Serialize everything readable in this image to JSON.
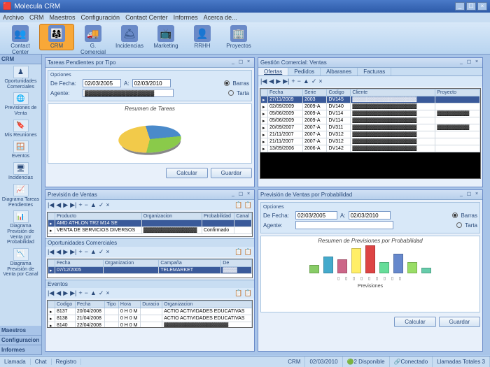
{
  "window": {
    "title": "Molecula CRM"
  },
  "menu": [
    "Archivo",
    "CRM",
    "Maestros",
    "Configuración",
    "Contact Center",
    "Informes",
    "Acerca de..."
  ],
  "ribbon": [
    {
      "label": "Contact Center",
      "icon": "👥"
    },
    {
      "label": "CRM",
      "icon": "👨‍👩‍👧",
      "active": true
    },
    {
      "label": "G. Comercial",
      "icon": "🚚"
    },
    {
      "label": "Incidencias",
      "icon": "🛎"
    },
    {
      "label": "Marketing",
      "icon": "📺"
    },
    {
      "label": "RRHH",
      "icon": "👤"
    },
    {
      "label": "Proyectos",
      "icon": "🏢"
    }
  ],
  "sidebar": {
    "group": "CRM",
    "items": [
      {
        "label": "Oportunidades Comerciales",
        "icon": "♟"
      },
      {
        "label": "Previsiones de Venta",
        "icon": "🌐"
      },
      {
        "label": "Mis Reuniones",
        "icon": "🔖"
      },
      {
        "label": "Eventos",
        "icon": "🪟"
      },
      {
        "label": "Incidencias",
        "icon": "🖥"
      },
      {
        "label": "Diagrama Tareas Pendientes",
        "icon": "📈"
      },
      {
        "label": "Diagrama Previsión de Venta por Probabilidad",
        "icon": "📊"
      },
      {
        "label": "Diagrama Previsión de Venta por Canal",
        "icon": "📉"
      }
    ],
    "bottom": [
      "Maestros",
      "Configuracion",
      "Informes"
    ]
  },
  "pane_tasks": {
    "title": "Tareas Pendientes por Tipo",
    "opts": {
      "label1": "Opciones",
      "from_lbl": "De Fecha:",
      "from": "02/03/2005",
      "to_lbl": "A:",
      "to": "02/03/2010",
      "agent_lbl": "Agente:",
      "agent": "▓▓▓▓▓▓▓▓▓▓▓▓▓▓▓▓▓",
      "r1": "Barras",
      "r2": "Tarta"
    },
    "chart": {
      "title": "Resumen de Tareas",
      "type": "pie",
      "colors": [
        "#4a8aca",
        "#8aca4a",
        "#f2ca4a"
      ],
      "values": [
        25,
        30,
        45
      ],
      "bg": "#ffffff"
    },
    "btn1": "Calcular",
    "btn2": "Guardar"
  },
  "pane_sales": {
    "title": "Gestión Comercial: Ventas",
    "tabs": [
      "Ofertas",
      "Pedidos",
      "Albaranes",
      "Facturas"
    ],
    "cols": [
      "Fecha",
      "Serie",
      "Codigo",
      "Cliente",
      "Proyecto"
    ],
    "rows": [
      [
        "27/11/2009",
        "2003",
        "DV145",
        "▓▓▓▓▓▓▓▓▓▓▓▓▓▓▓▓▓▓",
        ""
      ],
      [
        "02/09/2009",
        "2009-A",
        "DV140",
        "▓▓▓▓▓▓▓▓▓▓▓▓▓▓▓▓▓▓",
        ""
      ],
      [
        "05/06/2009",
        "2009-A",
        "DV114",
        "▓▓▓▓▓▓▓▓▓▓▓▓▓▓▓▓▓▓",
        "▓▓▓▓▓▓▓▓▓"
      ],
      [
        "05/06/2009",
        "2009-A",
        "DV114",
        "▓▓▓▓▓▓▓▓▓▓▓▓▓▓▓▓▓▓",
        ""
      ],
      [
        "20/09/2007",
        "2007-A",
        "DV311",
        "▓▓▓▓▓▓▓▓▓▓▓▓▓▓▓▓▓▓",
        "▓▓▓▓▓▓▓▓▓"
      ],
      [
        "21/11/2007",
        "2007-A",
        "DV312",
        "▓▓▓▓▓▓▓▓▓▓▓▓▓▓▓▓▓▓",
        ""
      ],
      [
        "21/11/2007",
        "2007-A",
        "DV312",
        "▓▓▓▓▓▓▓▓▓▓▓▓▓▓▓▓▓▓",
        ""
      ],
      [
        "13/09/2006",
        "2006-A",
        "DV142",
        "▓▓▓▓▓▓▓▓▓▓▓▓▓▓▓▓▓▓",
        ""
      ]
    ]
  },
  "pane_prev": {
    "title": "Previsión de Ventas",
    "cols": [
      "Producto",
      "Organizacion",
      "Probabilidad",
      "Canal"
    ],
    "rows": [
      [
        "AMD ATHLON TR2 M14 SE",
        "",
        "",
        ""
      ],
      [
        "VENTA DE SERVICIOS DIVERSOS",
        "▓▓▓▓▓▓▓▓▓▓▓▓▓▓▓",
        "Confirmado",
        ""
      ]
    ],
    "sub_opp": {
      "title": "Oportunidades Comerciales",
      "cols": [
        "Fecha",
        "Organizacion",
        "Campaña",
        "De"
      ],
      "rows": [
        [
          "07/12/2005",
          "",
          "TELEMARKET",
          "▓▓▓▓"
        ]
      ]
    },
    "sub_ev": {
      "title": "Eventos",
      "cols": [
        "Codigo",
        "Fecha",
        "Tipo",
        "Hora",
        "Duracio",
        "Organizacion"
      ],
      "rows": [
        [
          "8137",
          "20/04/2008",
          "",
          "0 H 0 M",
          "",
          "ACTIO ACTIVIDADES EDUCATIVAS"
        ],
        [
          "8138",
          "21/04/2008",
          "",
          "0 H 0 M",
          "",
          "ACTIO ACTIVIDADES EDUCATIVAS"
        ],
        [
          "8140",
          "22/04/2008",
          "",
          "0 H 0 M",
          "",
          "▓▓▓▓▓▓▓▓▓▓▓▓▓▓▓▓▓▓"
        ]
      ]
    }
  },
  "pane_prob": {
    "title": "Previsión de Ventas por Probabilidad",
    "opts": {
      "label1": "Opciones",
      "from_lbl": "De Fecha:",
      "from": "02/03/2005",
      "to_lbl": "A:",
      "to": "02/03/2010",
      "agent_lbl": "Agente:",
      "agent": "",
      "r1": "Barras",
      "r2": "Tarta"
    },
    "chart": {
      "title": "Resumen de Previsiones por Probabilidad",
      "type": "bar",
      "xlabel": "Previsiones",
      "values": [
        3,
        6,
        5,
        9,
        10,
        4,
        7,
        4,
        2
      ],
      "colors": [
        "#88cc66",
        "#44aacc",
        "#cc6688",
        "#ffee66",
        "#dd4444",
        "#66dd99",
        "#6688cc",
        "#99dd66",
        "#66ccaa"
      ],
      "bg": "#ffffff",
      "grid": "#e0e0e0",
      "ylim": 10
    },
    "btn1": "Calcular",
    "btn2": "Guardar"
  },
  "status": {
    "tabs": [
      "Llamada",
      "Chat",
      "Registro"
    ],
    "mid": "CRM",
    "date": "02/03/2010",
    "disp": "2 Disponible",
    "conn": "Conectado",
    "calls": "Llamadas Totales 3"
  }
}
